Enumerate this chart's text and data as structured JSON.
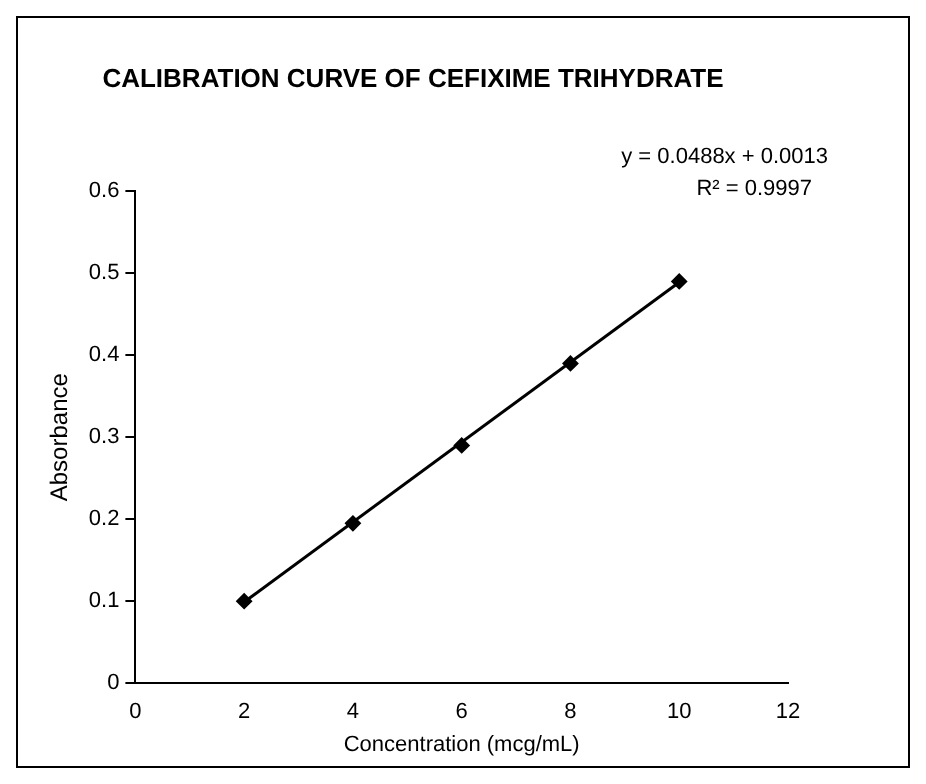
{
  "chart_data": {
    "type": "scatter",
    "title": "CALIBRATION CURVE OF CEFIXIME TRIHYDRATE",
    "xlabel": "Concentration (mcg/mL)",
    "ylabel": "Absorbance",
    "series": [
      {
        "type": "scatter",
        "color": "#000000",
        "marker": "diamond",
        "x": [
          2,
          4,
          6,
          8,
          10
        ],
        "values": [
          0.1,
          0.195,
          0.29,
          0.39,
          0.49
        ]
      },
      {
        "type": "line",
        "color": "#000000",
        "marker": "none",
        "x": [
          2,
          10
        ],
        "values": [
          0.099,
          0.489
        ]
      }
    ],
    "xlim": [
      0,
      12
    ],
    "xticks": [
      0,
      2,
      4,
      6,
      8,
      10,
      12
    ],
    "ylim": [
      0,
      0.6
    ],
    "yticks": [
      0,
      0.1,
      0.2,
      0.3,
      0.4,
      0.5,
      0.6
    ],
    "grid": false,
    "legend": false,
    "annotations": [
      "y = 0.0488x + 0.0013",
      "R² = 0.9997"
    ]
  }
}
